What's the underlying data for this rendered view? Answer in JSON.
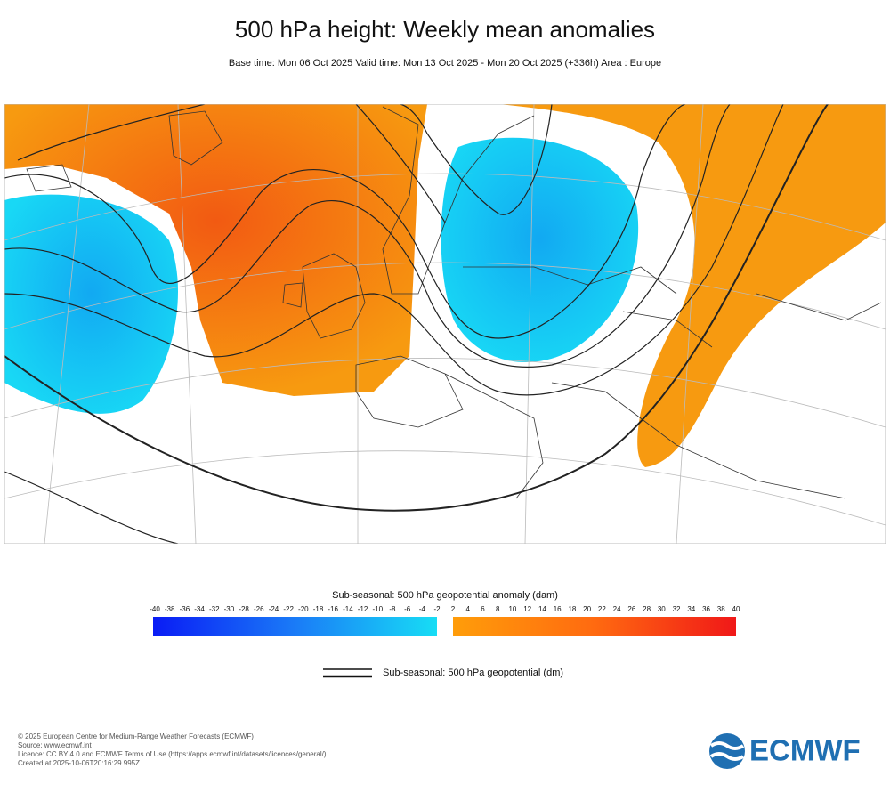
{
  "header": {
    "title": "500 hPa height: Weekly mean anomalies",
    "subtitle": "Base time: Mon 06 Oct 2025 Valid time: Mon 13 Oct 2025 - Mon 20 Oct 2025 (+336h) Area : Europe"
  },
  "colorbar": {
    "title": "Sub-seasonal: 500 hPa geopotential anomaly (dam)",
    "negative_ticks": [
      -40,
      -38,
      -36,
      -34,
      -32,
      -30,
      -28,
      -26,
      -24,
      -22,
      -20,
      -18,
      -16,
      -14,
      -12,
      -10,
      -8,
      -6,
      -4,
      -2
    ],
    "positive_ticks": [
      2,
      4,
      6,
      8,
      10,
      12,
      14,
      16,
      18,
      20,
      22,
      24,
      26,
      28,
      30,
      32,
      34,
      36,
      38,
      40
    ]
  },
  "contour_legend": {
    "label": "Sub-seasonal: 500 hPa geopotential (dm)"
  },
  "footer": {
    "lines": [
      "© 2025 European Centre for Medium-Range Weather Forecasts (ECMWF)",
      "Source: www.ecmwf.int",
      "Licence: CC BY 4.0 and ECMWF Terms of Use (https://apps.ecmwf.int/datasets/licences/general/)",
      "Created at 2025-10-06T20:16:29.995Z"
    ],
    "logo": "ECMWF"
  }
}
